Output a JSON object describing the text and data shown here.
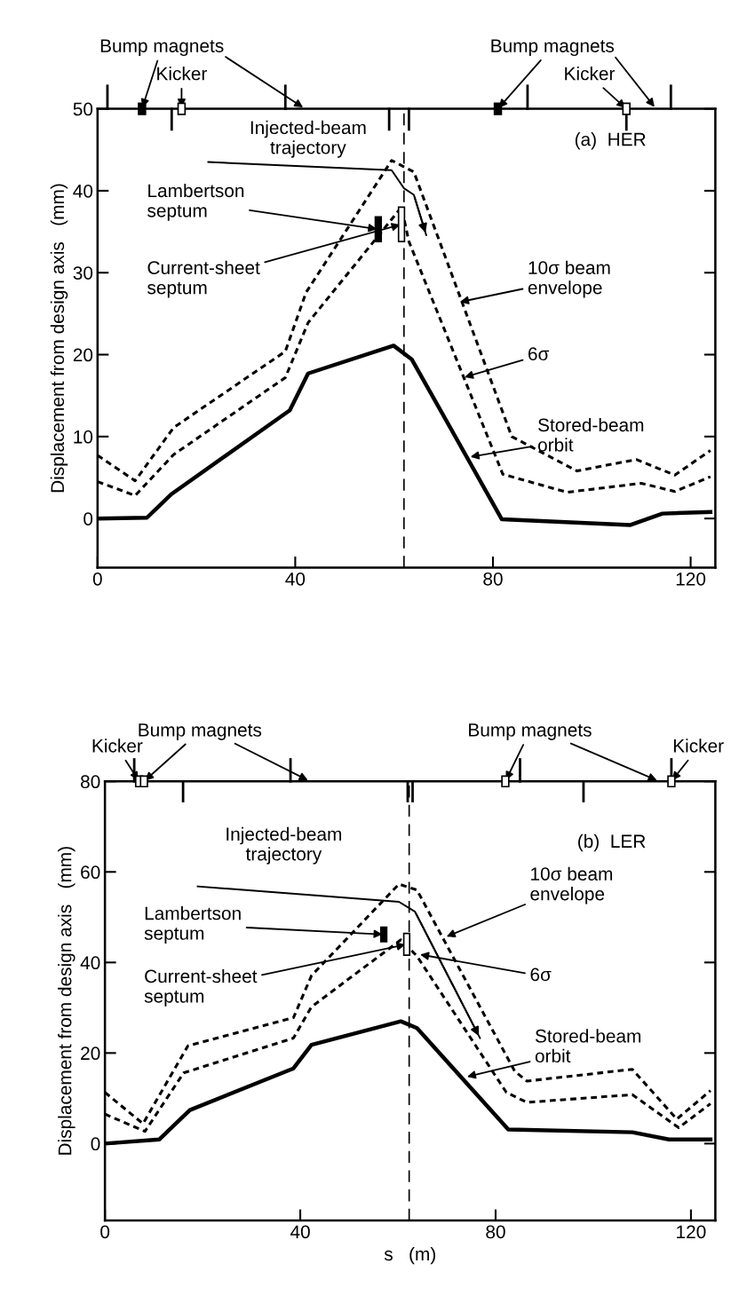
{
  "chart_data": [
    {
      "type": "line",
      "title": "(a)  HER",
      "ylabel": "Displacement from design axis   (mm)",
      "xlim": [
        0,
        125
      ],
      "xticks": [
        0,
        40,
        80,
        120
      ],
      "ylim": [
        -6,
        50
      ],
      "yticks": [
        0,
        10,
        20,
        30,
        40,
        50
      ],
      "tick_labels": "xy",
      "series": [
        {
          "color": "#000000",
          "line_style": "dotted",
          "x": [
            0,
            7.6,
            15.4,
            38,
            42.2,
            59.5,
            64,
            83.8,
            97,
            109,
            116.8,
            124
          ],
          "values": [
            7.7,
            4.6,
            11.1,
            20.4,
            27.6,
            43.7,
            42.3,
            10.0,
            5.8,
            7.2,
            5.3,
            8.3
          ]
        },
        {
          "color": "#000000",
          "line_style": "dotted",
          "x": [
            0,
            7.6,
            15.4,
            38,
            42.6,
            61.5,
            63,
            82,
            95,
            110,
            116.8,
            124
          ],
          "values": [
            4.5,
            2.8,
            7.8,
            17.2,
            23.9,
            38,
            33.8,
            5.4,
            3.2,
            4.3,
            3.3,
            5.1
          ]
        },
        {
          "color": "#000000",
          "line_style": "solid",
          "x": [
            0,
            10,
            15,
            38.9,
            42.6,
            59.9,
            63.6,
            81.8,
            107.7,
            114.3,
            124
          ],
          "values": [
            0,
            0.1,
            3.0,
            13.2,
            17.7,
            21.1,
            19.4,
            -0.1,
            -0.8,
            0.6,
            0.8
          ]
        },
        {
          "color": "#000000",
          "line_style": "solid",
          "x": [
            22.4,
            59.5,
            62,
            64,
            66.5
          ],
          "values": [
            43.5,
            42.5,
            40.3,
            39.5,
            34.6
          ]
        }
      ],
      "ref_lines": [
        {
          "axis": "x",
          "value": 62,
          "line_style": "dashed",
          "color": "#000000"
        }
      ],
      "annotations": [
        {
          "text": "Bump magnets",
          "x": 9,
          "y": 50
        },
        {
          "text": "Kicker",
          "x": 17,
          "y": 50
        },
        {
          "text": "Bump magnets",
          "x": 81,
          "y": 50
        },
        {
          "text": "Kicker",
          "x": 107,
          "y": 50
        },
        "Injected-beam\ntrajectory",
        {
          "text": "Lambertson\nseptum",
          "x": 56.8,
          "y": 35.3
        },
        {
          "text": "Current-sheet\nseptum",
          "x": 61.5,
          "y": 35.9
        },
        {
          "text": "10σ beam\nenvelope",
          "x": 73.1,
          "y": 26.4
        },
        {
          "text": "6σ",
          "x": 74,
          "y": 17.2
        },
        {
          "text": "Stored-beam\norbit",
          "x": 75.2,
          "y": 7.5
        }
      ]
    },
    {
      "type": "line",
      "title": "(b)  LER",
      "xlabel": "s   (m)",
      "ylabel": "Displacement from design axis   (mm)",
      "xlim": [
        0,
        125
      ],
      "xticks": [
        0,
        40,
        80,
        120
      ],
      "ylim": [
        -17,
        80
      ],
      "yticks": [
        0,
        20,
        40,
        60,
        80
      ],
      "series": [
        {
          "color": "#000000",
          "line_style": "dotted",
          "x": [
            0,
            7.8,
            17,
            38.6,
            42.3,
            60.2,
            63.9,
            83.9,
            86.4,
            108,
            117.1,
            124
          ],
          "values": [
            11.3,
            4.4,
            21.6,
            27.8,
            37.1,
            57.3,
            56,
            16,
            13.8,
            16.4,
            5.4,
            11.7
          ]
        },
        {
          "color": "#000000",
          "line_style": "dotted",
          "x": [
            0,
            8.2,
            16.1,
            38.6,
            42.3,
            60.6,
            63.9,
            82.2,
            86.4,
            108,
            117.5,
            124
          ],
          "values": [
            6.5,
            2.7,
            15.6,
            23.3,
            30.2,
            45,
            41.4,
            11.3,
            9.1,
            10.8,
            3.5,
            8.8
          ]
        },
        {
          "color": "#000000",
          "line_style": "solid",
          "x": [
            0,
            11.1,
            17.4,
            38.6,
            42.3,
            60.6,
            63.9,
            82.6,
            108,
            115.5,
            124
          ],
          "values": [
            0,
            0.9,
            7.4,
            16.6,
            21.8,
            27.0,
            25.5,
            3.1,
            2.5,
            0.9,
            0.9
          ]
        },
        {
          "color": "#000000",
          "line_style": "solid",
          "x": [
            19,
            60.2,
            63.5,
            76.8
          ],
          "values": [
            56.8,
            53.4,
            51.2,
            23.3
          ]
        }
      ],
      "ref_lines": [
        {
          "axis": "x",
          "value": 62.3,
          "line_style": "dashed",
          "color": "#000000"
        }
      ],
      "annotations": [
        {
          "text": "Kicker",
          "x": 7,
          "y": 80
        },
        {
          "text": "Bump magnets",
          "x": 8,
          "y": 80
        },
        {
          "text": "Bump magnets",
          "x": 82,
          "y": 80
        },
        {
          "text": "Kicker",
          "x": 116,
          "y": 80
        },
        "Injected-beam\ntrajectory",
        {
          "text": "Lambertson\nseptum",
          "x": 57.1,
          "y": 46.2
        },
        {
          "text": "Current-sheet\nseptum",
          "x": 61.8,
          "y": 44
        },
        {
          "text": "10σ beam\nenvelope",
          "x": 69.7,
          "y": 45.6
        },
        {
          "text": "6σ",
          "x": 64.3,
          "y": 41.8
        },
        {
          "text": "Stored-beam\norbit",
          "x": 73.9,
          "y": 14.7
        }
      ]
    }
  ]
}
